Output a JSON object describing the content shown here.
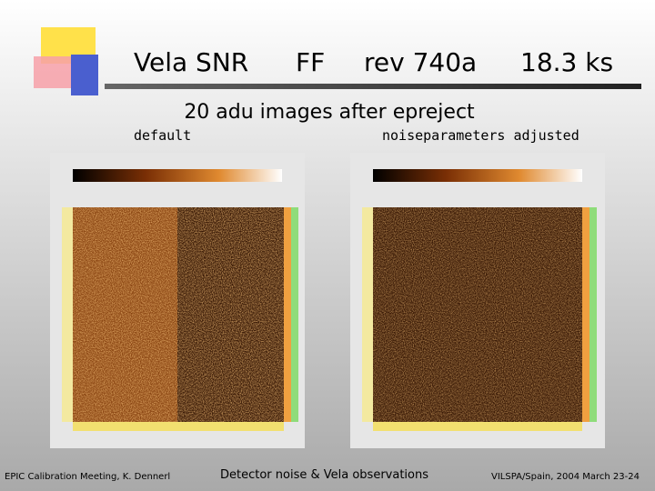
{
  "header": {
    "title_parts": [
      "Vela SNR",
      "FF",
      "rev 740a",
      "18.3 ks"
    ],
    "subtitle": "20 adu images after epreject"
  },
  "panels": [
    {
      "label": "default"
    },
    {
      "label": "noiseparameters adjusted"
    }
  ],
  "footer": {
    "left": "EPIC Calibration Meeting, K. Dennerl",
    "center": "Detector noise & Vela observations",
    "right": "VILSPA/Spain, 2004 March 23-24"
  }
}
